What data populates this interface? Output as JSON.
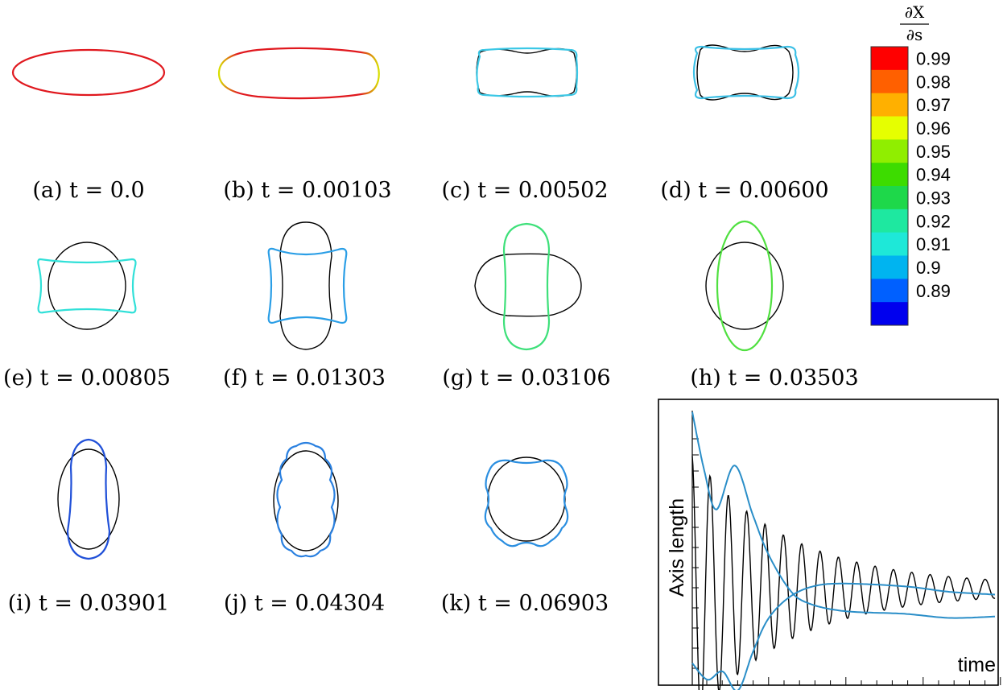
{
  "colorbar": {
    "label_numerator": "∂X",
    "label_denominator": "∂s",
    "ticks": [
      "0.99",
      "0.98",
      "0.97",
      "0.96",
      "0.95",
      "0.94",
      "0.93",
      "0.92",
      "0.91",
      "0.9",
      "0.89"
    ],
    "colors": [
      "#ff0000",
      "#ff6000",
      "#ffb000",
      "#e6ff00",
      "#90ee00",
      "#3ddc00",
      "#1ed84a",
      "#1ee8a0",
      "#1ee8d8",
      "#00b4f0",
      "#0060ff",
      "#0000ee"
    ]
  },
  "panels": [
    {
      "caption": "(a) t = 0.0",
      "color": "#e0181e"
    },
    {
      "caption": "(b) t = 0.00103",
      "color": "#e0181e",
      "end_color": "#d8e000"
    },
    {
      "caption": "(c) t = 0.00502",
      "color": "#3cc8e6"
    },
    {
      "caption": "(d) t = 0.00600",
      "color": "#3cc0e6"
    },
    {
      "caption": "(e) t = 0.00805",
      "color": "#30e0d8"
    },
    {
      "caption": "(f) t = 0.01303",
      "color": "#2a9ee6"
    },
    {
      "caption": "(g) t = 0.03106",
      "color": "#3ee07a"
    },
    {
      "caption": "(h) t = 0.03503",
      "color": "#50e040"
    },
    {
      "caption": "(i) t = 0.03901",
      "color": "#2050d8"
    },
    {
      "caption": "(j) t = 0.04304",
      "color": "#2a80e0"
    },
    {
      "caption": "(k) t = 0.06903",
      "color": "#2a8ee0"
    }
  ],
  "chart_data": {
    "type": "line",
    "ylabel": "Axis length",
    "xlabel": "time",
    "series": [
      {
        "color": "#000000",
        "values": []
      },
      {
        "color": "#2a8ec8",
        "values": []
      }
    ]
  }
}
